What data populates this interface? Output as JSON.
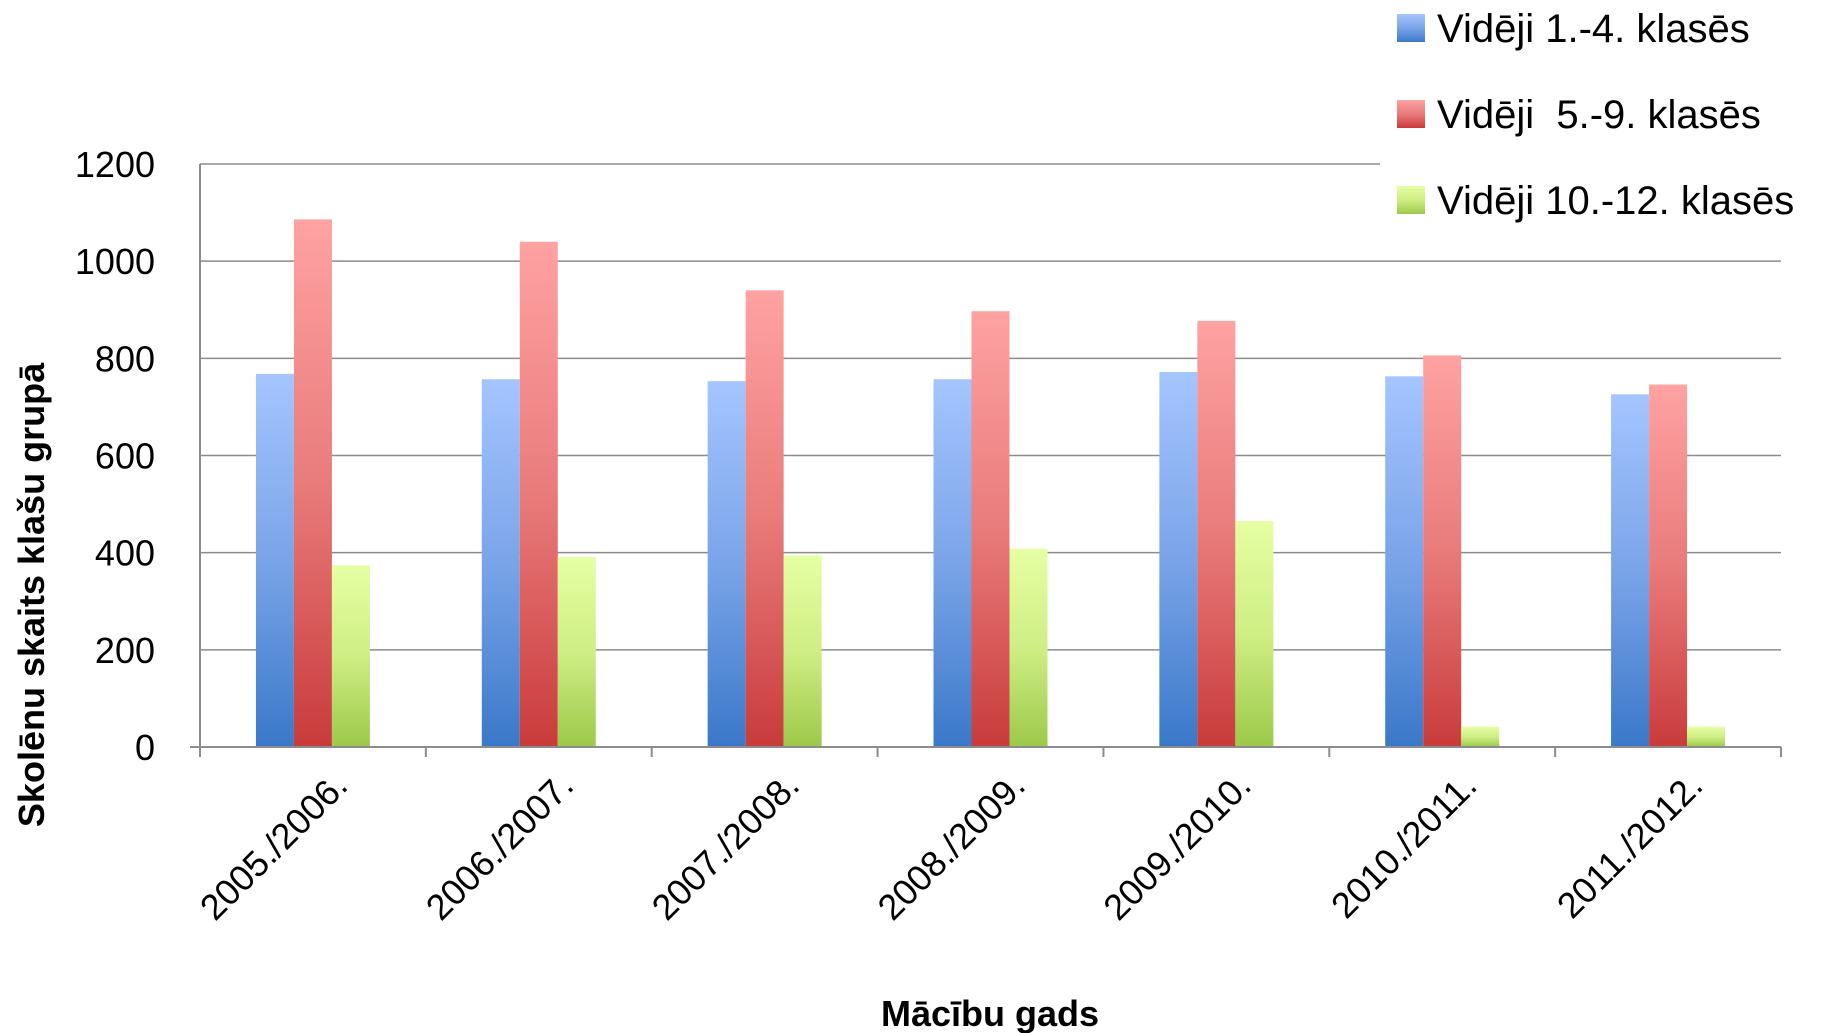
{
  "chart_data": {
    "type": "bar",
    "xlabel": "Mācību gads",
    "ylabel": "Skolēnu skaits klašu grupā",
    "ylim": [
      0,
      1200
    ],
    "yticks": [
      0,
      200,
      400,
      600,
      800,
      1000,
      1200
    ],
    "grid": true,
    "legend_position": "top-right",
    "categories": [
      "2005./2006.",
      "2006./2007.",
      "2007./2008.",
      "2008./2009.",
      "2009./2010.",
      "2010./2011.",
      "2011./2012."
    ],
    "series": [
      {
        "name": "Vidēji 1.-4. klasēs",
        "color": "#4f81bd",
        "values": [
          768,
          757,
          753,
          757,
          772,
          763,
          726
        ]
      },
      {
        "name": "Vidēji  5.-9. klasēs",
        "color": "#c0504d",
        "values": [
          1086,
          1040,
          940,
          897,
          877,
          806,
          746
        ]
      },
      {
        "name": "Vidēji 10.-12. klasēs",
        "color": "#9bbb59",
        "values": [
          374,
          391,
          394,
          408,
          465,
          42,
          42
        ]
      }
    ]
  }
}
